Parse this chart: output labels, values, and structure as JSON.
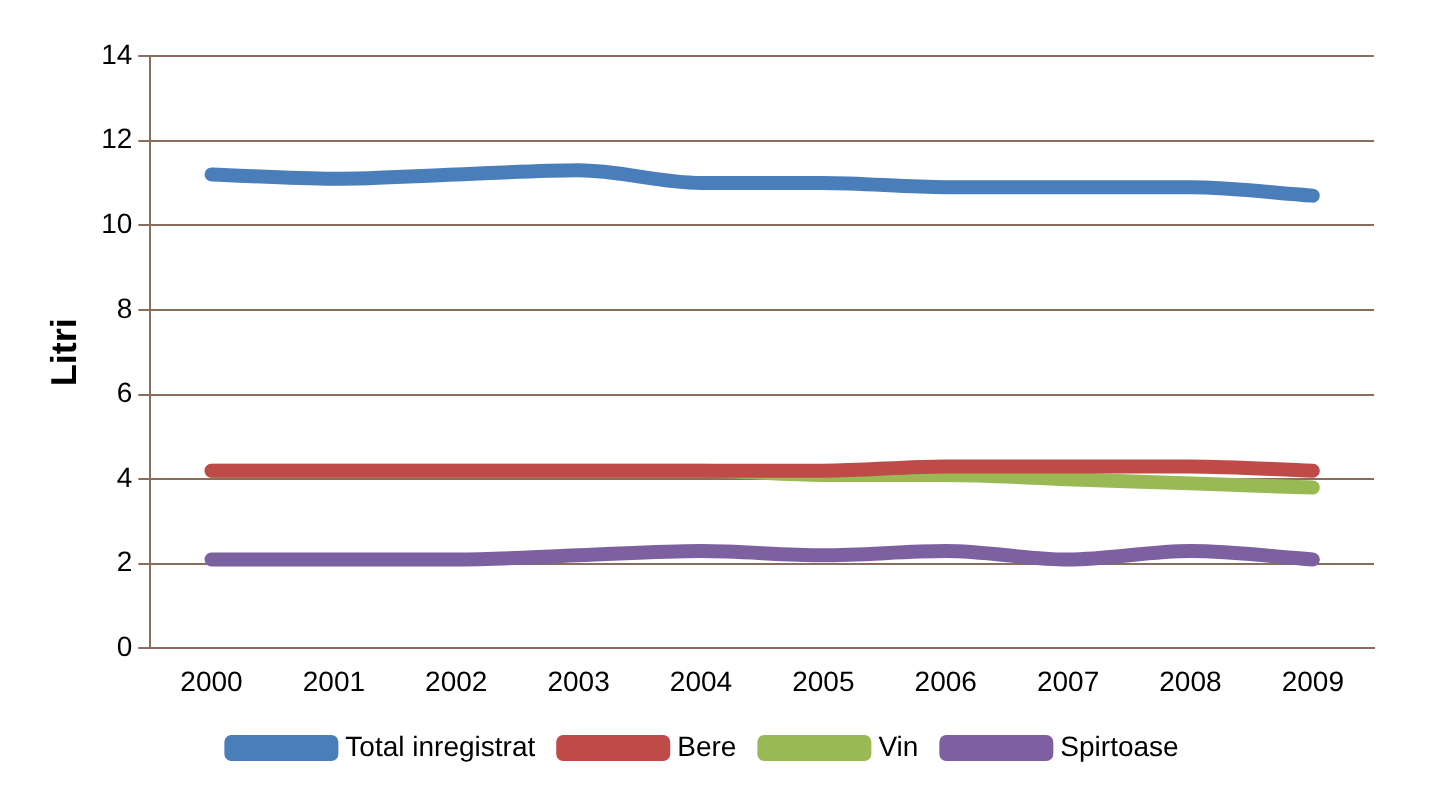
{
  "chart_data": {
    "type": "line",
    "ylabel": "Litri",
    "categories": [
      "2000",
      "2001",
      "2002",
      "2003",
      "2004",
      "2005",
      "2006",
      "2007",
      "2008",
      "2009"
    ],
    "series": [
      {
        "name": "Total inregistrat",
        "color": "#4a7ebb",
        "values": [
          11.2,
          11.1,
          11.2,
          11.3,
          11.0,
          11.0,
          10.9,
          10.9,
          10.9,
          10.7
        ]
      },
      {
        "name": "Bere",
        "color": "#be4b48",
        "values": [
          4.2,
          4.2,
          4.2,
          4.2,
          4.2,
          4.2,
          4.3,
          4.3,
          4.3,
          4.2
        ]
      },
      {
        "name": "Vin",
        "color": "#98b954",
        "values": [
          4.2,
          4.2,
          4.2,
          4.2,
          4.2,
          4.1,
          4.1,
          4.0,
          3.9,
          3.8
        ]
      },
      {
        "name": "Spirtoase",
        "color": "#7d60a0",
        "values": [
          2.1,
          2.1,
          2.1,
          2.2,
          2.3,
          2.2,
          2.3,
          2.1,
          2.3,
          2.1
        ]
      }
    ],
    "ylim": [
      0,
      14
    ],
    "yticks": [
      0,
      2,
      4,
      6,
      8,
      10,
      12,
      14
    ],
    "grid": "y",
    "legend": "bottom",
    "marker": "none",
    "line_style": "solid"
  }
}
